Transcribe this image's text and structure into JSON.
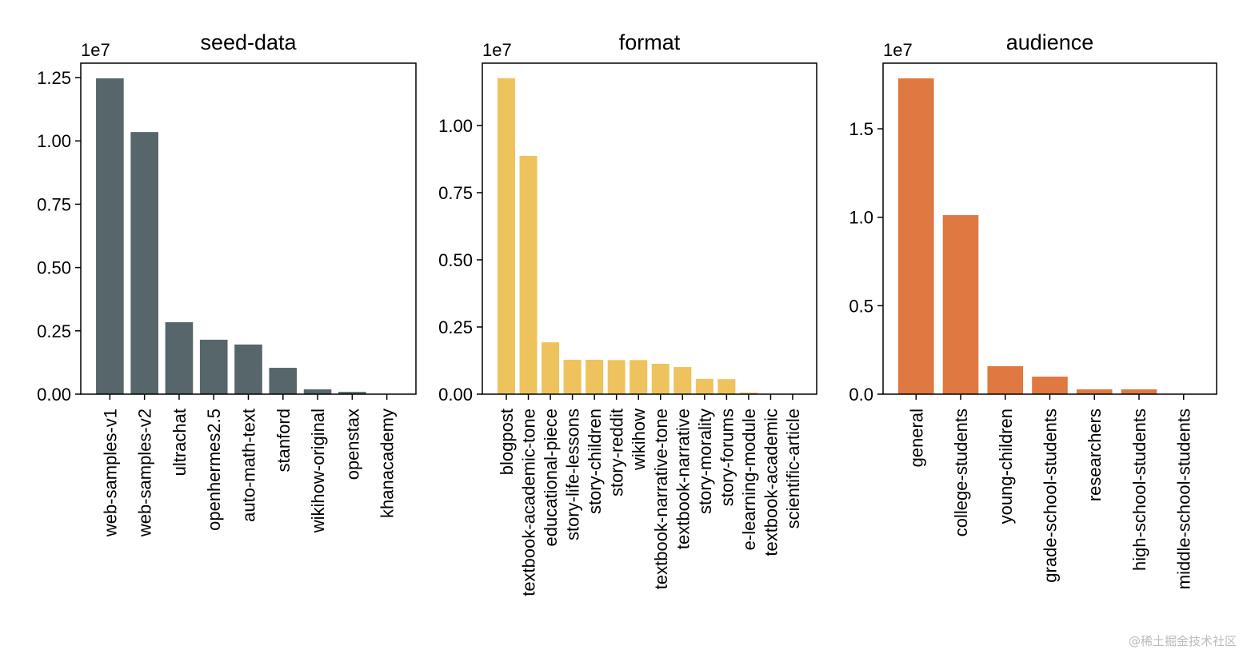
{
  "chart_data": [
    {
      "type": "bar",
      "title": "seed-data",
      "offset_label": "1e7",
      "color": "#56666a",
      "categories": [
        "web-samples-v1",
        "web-samples-v2",
        "ultrachat",
        "openhermes2.5",
        "auto-math-text",
        "stanford",
        "wikihow-original",
        "openstax",
        "khanacademy"
      ],
      "values": [
        12470000,
        10350000,
        2840000,
        2150000,
        1960000,
        1040000,
        190000,
        90000,
        10000
      ],
      "yticks": [
        0,
        0.25,
        0.5,
        0.75,
        1.0,
        1.25
      ],
      "ytick_labels": [
        "0.00",
        "0.25",
        "0.50",
        "0.75",
        "1.00",
        "1.25"
      ],
      "ylim": [
        0,
        13070000
      ]
    },
    {
      "type": "bar",
      "title": "format",
      "offset_label": "1e7",
      "color": "#eec35e",
      "categories": [
        "blogpost",
        "textbook-academic-tone",
        "educational-piece",
        "story-life-lessons",
        "story-children",
        "story-reddit",
        "wikihow",
        "textbook-narrative-tone",
        "textbook-narrative",
        "story-morality",
        "story-forums",
        "e-learning-module",
        "textbook-academic",
        "scientific-article"
      ],
      "values": [
        11760000,
        8870000,
        1930000,
        1280000,
        1280000,
        1270000,
        1270000,
        1130000,
        1010000,
        570000,
        560000,
        60000,
        10000,
        5000
      ],
      "yticks": [
        0,
        0.25,
        0.5,
        0.75,
        1.0
      ],
      "ytick_labels": [
        "0.00",
        "0.25",
        "0.50",
        "0.75",
        "1.00"
      ],
      "ylim": [
        0,
        12320000
      ]
    },
    {
      "type": "bar",
      "title": "audience",
      "offset_label": "1e7",
      "color": "#df7841",
      "categories": [
        "general",
        "college-students",
        "young-children",
        "grade-school-students",
        "researchers",
        "high-school-students",
        "middle-school-students"
      ],
      "values": [
        17850000,
        10120000,
        1580000,
        990000,
        270000,
        270000,
        10000
      ],
      "yticks": [
        0,
        0.5,
        1.0,
        1.5
      ],
      "ytick_labels": [
        "0.0",
        "0.5",
        "1.0",
        "1.5"
      ],
      "ylim": [
        0,
        18710000
      ]
    }
  ],
  "watermark": "@稀土掘金技术社区"
}
